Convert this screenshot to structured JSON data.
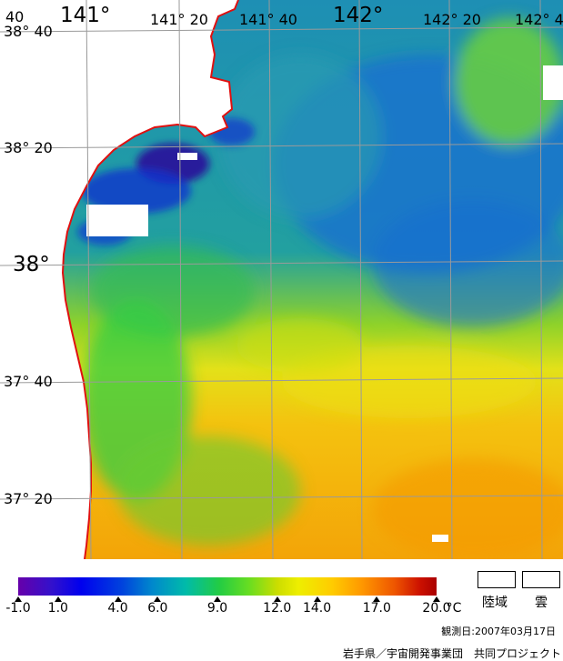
{
  "map": {
    "lon_labels": [
      "141°",
      "141° 20",
      "141° 40",
      "142°",
      "142° 20",
      "142° 4"
    ],
    "lat_labels": [
      "38° 40",
      "38° 20",
      "38°",
      "37° 40",
      "37° 20"
    ],
    "corner_fragment": "40"
  },
  "legend": {
    "unit": "°C",
    "ticks": [
      "-1.0",
      "1.0",
      "4.0",
      "6.0",
      "9.0",
      "12.0",
      "14.0",
      "17.0",
      "20.0"
    ],
    "tick_values": [
      -1.0,
      1.0,
      4.0,
      6.0,
      9.0,
      12.0,
      14.0,
      17.0,
      20.0
    ],
    "range": [
      -1.0,
      20.0
    ],
    "land_label": "陸域",
    "cloud_label": "雲"
  },
  "footer": {
    "date": "観測日:2007年03月17日",
    "credit": "岩手県／宇宙開発事業団　共同プロジェクト"
  }
}
